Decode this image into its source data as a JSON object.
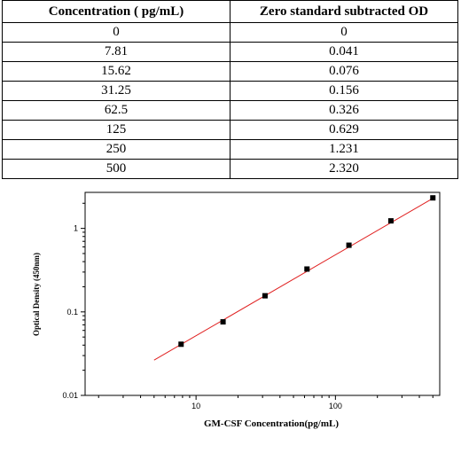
{
  "table": {
    "headers": [
      "Concentration ( pg/mL)",
      "Zero standard subtracted OD"
    ],
    "rows": [
      [
        "0",
        "0"
      ],
      [
        "7.81",
        "0.041"
      ],
      [
        "15.62",
        "0.076"
      ],
      [
        "31.25",
        "0.156"
      ],
      [
        "62.5",
        "0.326"
      ],
      [
        "125",
        "0.629"
      ],
      [
        "250",
        "1.231"
      ],
      [
        "500",
        "2.320"
      ]
    ]
  },
  "chart_data": {
    "type": "scatter",
    "xlabel": "GM-CSF  Concentration(pg/mL)",
    "ylabel": "Optical Density (450nm)",
    "xscale": "log",
    "yscale": "log",
    "xlim": [
      1.6,
      560
    ],
    "ylim": [
      0.01,
      2.7
    ],
    "xticks": [
      {
        "value": 10,
        "label": "10"
      },
      {
        "value": 100,
        "label": "100"
      }
    ],
    "yticks": [
      {
        "value": 0.01,
        "label": "0.01"
      },
      {
        "value": 0.1,
        "label": "0.1"
      },
      {
        "value": 1,
        "label": "1"
      }
    ],
    "grid": false,
    "series": [
      {
        "points": [
          {
            "x": 7.81,
            "y": 0.041
          },
          {
            "x": 15.62,
            "y": 0.076
          },
          {
            "x": 31.25,
            "y": 0.156
          },
          {
            "x": 62.5,
            "y": 0.326
          },
          {
            "x": 125,
            "y": 0.629
          },
          {
            "x": 250,
            "y": 1.231
          },
          {
            "x": 500,
            "y": 2.32
          }
        ],
        "color": "#000000"
      }
    ],
    "fit_line": {
      "x": [
        5,
        520
      ],
      "y": [
        0.0265,
        2.38
      ],
      "color": "#e02020"
    }
  }
}
